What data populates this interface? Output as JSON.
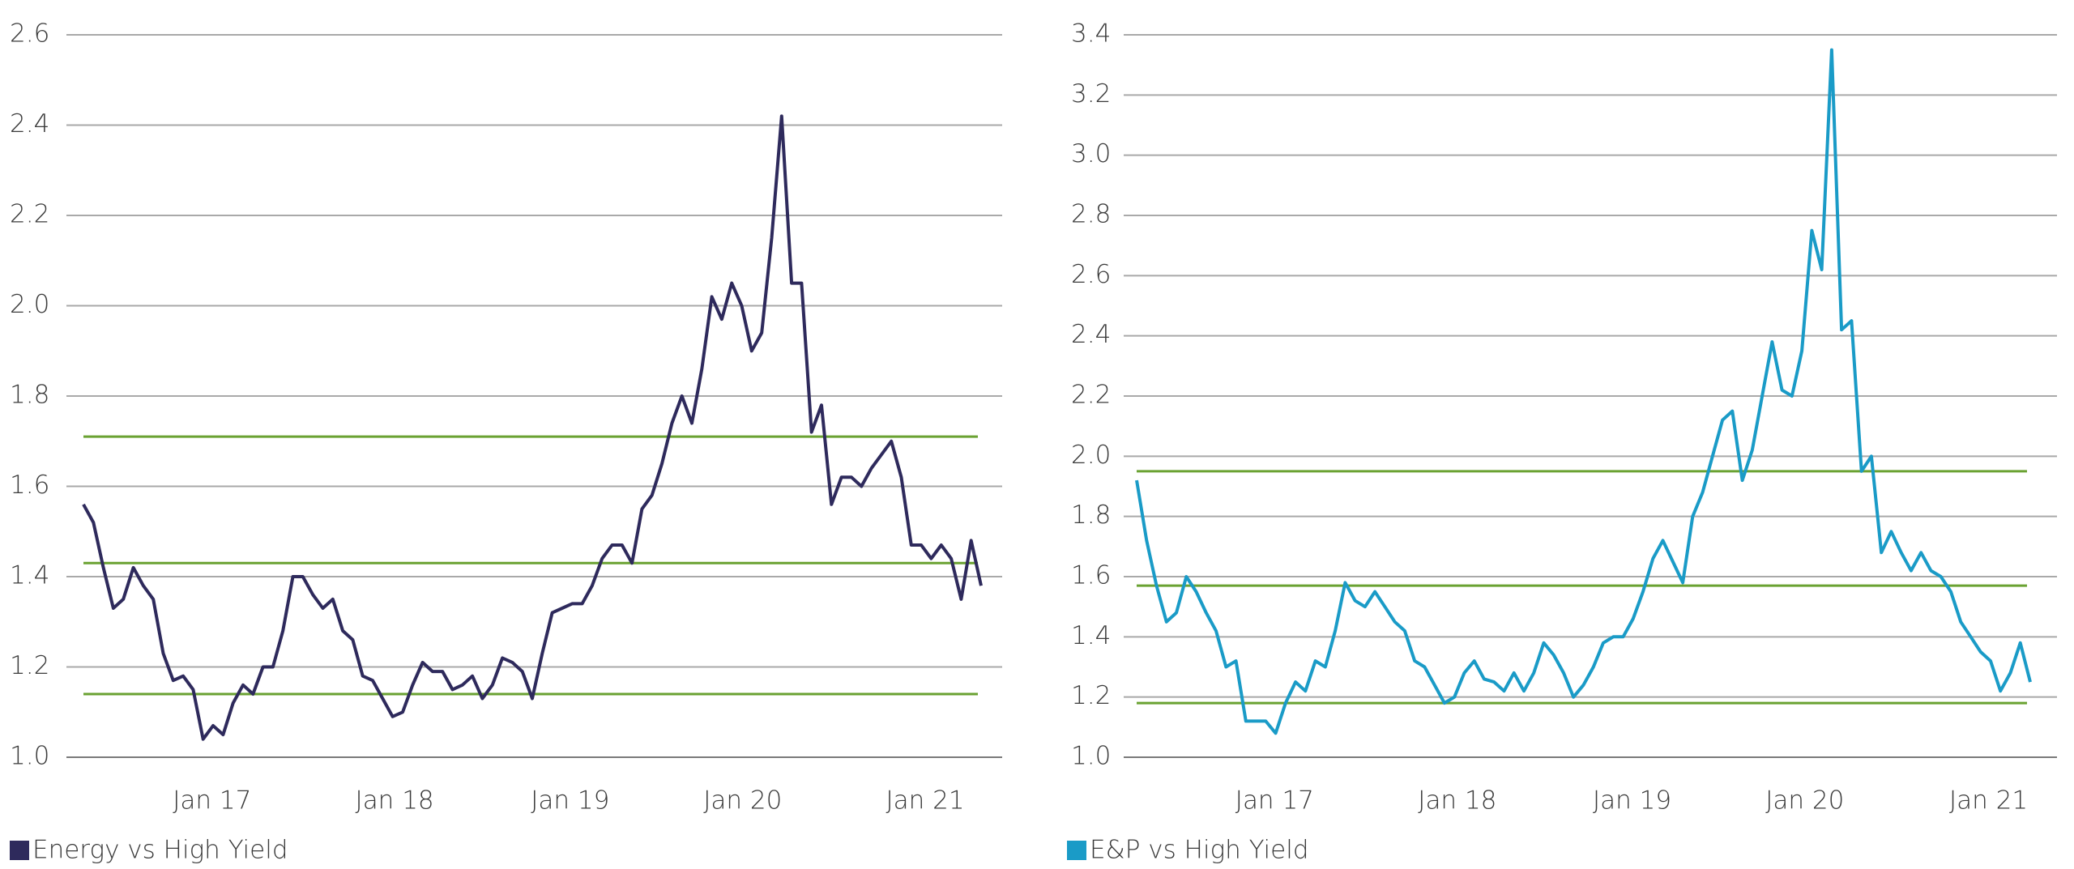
{
  "chart_data": [
    {
      "type": "line",
      "series": [
        {
          "name": "Energy vs High Yield",
          "color": "#2e2a5c",
          "values": [
            1.56,
            1.52,
            1.42,
            1.33,
            1.35,
            1.42,
            1.38,
            1.35,
            1.23,
            1.17,
            1.18,
            1.15,
            1.04,
            1.07,
            1.05,
            1.12,
            1.16,
            1.14,
            1.2,
            1.2,
            1.28,
            1.4,
            1.4,
            1.36,
            1.33,
            1.35,
            1.28,
            1.26,
            1.18,
            1.17,
            1.13,
            1.09,
            1.1,
            1.16,
            1.21,
            1.19,
            1.19,
            1.15,
            1.16,
            1.18,
            1.13,
            1.16,
            1.22,
            1.21,
            1.19,
            1.13,
            1.23,
            1.32,
            1.33,
            1.34,
            1.34,
            1.38,
            1.44,
            1.47,
            1.47,
            1.43,
            1.55,
            1.58,
            1.65,
            1.74,
            1.8,
            1.74,
            1.86,
            2.02,
            1.97,
            2.05,
            2.0,
            1.9,
            1.94,
            2.15,
            2.42,
            2.05,
            2.05,
            1.72,
            1.78,
            1.56,
            1.62,
            1.62,
            1.6,
            1.64,
            1.67,
            1.7,
            1.62,
            1.47,
            1.47,
            1.44,
            1.47,
            1.44,
            1.35,
            1.48,
            1.38
          ]
        }
      ],
      "xlim": [
        0,
        90
      ],
      "xticks": [
        {
          "value": 12.9,
          "label": "Jan 17"
        },
        {
          "value": 31.2,
          "label": "Jan 18"
        },
        {
          "value": 48.8,
          "label": "Jan 19"
        },
        {
          "value": 66.1,
          "label": "Jan 20"
        },
        {
          "value": 84.4,
          "label": "Jan 21"
        }
      ],
      "ylim": [
        1.0,
        2.6
      ],
      "yticks": [
        {
          "value": 1.0,
          "label": "1.0"
        },
        1.2,
        1.4,
        1.6,
        1.8,
        {
          "value": 2.0,
          "label": "2.0"
        },
        2.2,
        2.4,
        2.6
      ],
      "grid": true,
      "reference_lines": [
        1.71,
        1.43,
        1.14
      ],
      "reference_color": "#6aa232"
    },
    {
      "type": "line",
      "series": [
        {
          "name": "E&P vs High Yield",
          "color": "#1a9bc7",
          "values": [
            1.92,
            1.72,
            1.57,
            1.45,
            1.48,
            1.6,
            1.55,
            1.48,
            1.42,
            1.3,
            1.32,
            1.12,
            1.12,
            1.12,
            1.08,
            1.18,
            1.25,
            1.22,
            1.32,
            1.3,
            1.42,
            1.58,
            1.52,
            1.5,
            1.55,
            1.5,
            1.45,
            1.42,
            1.32,
            1.3,
            1.24,
            1.18,
            1.2,
            1.28,
            1.32,
            1.26,
            1.25,
            1.22,
            1.28,
            1.22,
            1.28,
            1.38,
            1.34,
            1.28,
            1.2,
            1.24,
            1.3,
            1.38,
            1.4,
            1.4,
            1.46,
            1.55,
            1.66,
            1.72,
            1.65,
            1.58,
            1.8,
            1.88,
            2.0,
            2.12,
            2.15,
            1.92,
            2.02,
            2.2,
            2.38,
            2.22,
            2.2,
            2.35,
            2.75,
            2.62,
            3.35,
            2.42,
            2.45,
            1.95,
            2.0,
            1.68,
            1.75,
            1.68,
            1.62,
            1.68,
            1.62,
            1.6,
            1.55,
            1.45,
            1.4,
            1.35,
            1.32,
            1.22,
            1.28,
            1.38,
            1.25
          ]
        }
      ],
      "xlim": [
        0,
        90
      ],
      "xticks": [
        {
          "value": 13.9,
          "label": "Jan 17"
        },
        {
          "value": 32.3,
          "label": "Jan 18"
        },
        {
          "value": 49.9,
          "label": "Jan 19"
        },
        {
          "value": 67.3,
          "label": "Jan 20"
        },
        {
          "value": 85.8,
          "label": "Jan 21"
        }
      ],
      "ylim": [
        1.0,
        3.4
      ],
      "yticks": [
        {
          "value": 1.0,
          "label": "1.0"
        },
        1.2,
        1.4,
        1.6,
        1.8,
        {
          "value": 2.0,
          "label": "2.0"
        },
        2.2,
        2.4,
        2.6,
        2.8,
        {
          "value": 3.0,
          "label": "3.0"
        },
        3.2,
        3.4
      ],
      "grid": true,
      "reference_lines": [
        1.95,
        1.57,
        1.18
      ],
      "reference_color": "#6aa232"
    }
  ]
}
